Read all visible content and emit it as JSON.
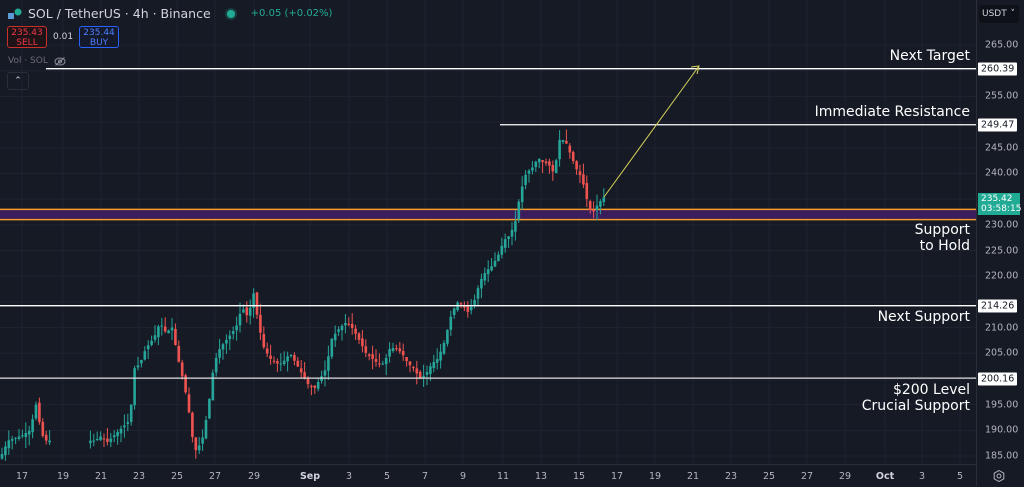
{
  "header": {
    "title": "SOL / TetherUS · 4h · Binance",
    "change": "+0.05 (+0.02%)",
    "sell_price": "235.43",
    "sell_label": "SELL",
    "spread": "0.01",
    "buy_price": "235.44",
    "buy_label": "BUY",
    "volume_label": "Vol · SOL",
    "currency": "USDT"
  },
  "price_axis": {
    "ticks": [
      "265.00",
      "255.00",
      "245.00",
      "240.00",
      "230.00",
      "225.00",
      "220.00",
      "210.00",
      "205.00",
      "195.00",
      "190.00",
      "185.00"
    ],
    "current_price": "235.42",
    "countdown": "03:58:15"
  },
  "time_axis": {
    "ticks": [
      "17",
      "19",
      "21",
      "23",
      "25",
      "27",
      "29",
      "Sep",
      "3",
      "5",
      "7",
      "9",
      "11",
      "13",
      "15",
      "17",
      "19",
      "21",
      "23",
      "25",
      "27",
      "29",
      "Oct",
      "3",
      "5"
    ]
  },
  "annotations": {
    "next_target": {
      "label": "Next Target",
      "price": "260.39"
    },
    "immediate_resistance": {
      "label": "Immediate Resistance",
      "price": "249.47"
    },
    "support_to_hold": {
      "label_line1": "Support",
      "label_line2": "to Hold",
      "zone": [
        231.0,
        233.0
      ]
    },
    "next_support": {
      "label": "Next Support",
      "price": "214.26"
    },
    "level_200": {
      "label_line1": "$200 Level",
      "label_line2": "Crucial Support",
      "price": "200.16"
    }
  },
  "colors": {
    "up": "#26a69a",
    "down": "#ef5350",
    "zone_fill": "#3b1d5e",
    "zone_border": "#f59b2b",
    "arrow": "#d8d25a",
    "background": "#161a25"
  },
  "chart_data": {
    "type": "candlestick",
    "title": "SOL / TetherUS · 4h · Binance",
    "xlabel": "",
    "ylabel": "USDT",
    "ylim": [
      183,
      268
    ],
    "x_ticks": [
      "17",
      "19",
      "21",
      "23",
      "25",
      "27",
      "29",
      "Sep",
      "3",
      "5",
      "7",
      "9",
      "11",
      "13",
      "15",
      "17",
      "19",
      "21",
      "23",
      "25",
      "27",
      "29",
      "Oct",
      "3",
      "5"
    ],
    "y_ticks": [
      185,
      190,
      195,
      200,
      205,
      210,
      215,
      220,
      225,
      230,
      235,
      240,
      245,
      250,
      255,
      260,
      265
    ],
    "horizontal_levels": [
      {
        "name": "Next Target",
        "price": 260.39
      },
      {
        "name": "Immediate Resistance",
        "price": 249.47
      },
      {
        "name": "Next Support",
        "price": 214.26
      },
      {
        "name": "$200 Level Crucial Support",
        "price": 200.16
      }
    ],
    "zones": [
      {
        "name": "Support to Hold",
        "low": 231.0,
        "high": 233.0
      }
    ],
    "projection_arrow": {
      "from": [
        235.4,
        "Sep 15"
      ],
      "to": [
        260.4,
        "Sep 21"
      ]
    },
    "last_price": 235.42,
    "approx_key_points": [
      {
        "date": "Aug 17",
        "close": 189
      },
      {
        "date": "Aug 18",
        "high": 195.5
      },
      {
        "date": "Aug 23",
        "close": 202
      },
      {
        "date": "Aug 24",
        "high": 213
      },
      {
        "date": "Aug 26",
        "low": 186
      },
      {
        "date": "Aug 29",
        "high": 217.5
      },
      {
        "date": "Sep 1",
        "low": 196
      },
      {
        "date": "Sep 3",
        "high": 212
      },
      {
        "date": "Sep 7",
        "low": 200
      },
      {
        "date": "Sep 9",
        "close": 214
      },
      {
        "date": "Sep 11",
        "close": 233
      },
      {
        "date": "Sep 13",
        "close": 243
      },
      {
        "date": "Sep 14",
        "high": 249.5
      },
      {
        "date": "Sep 15",
        "low": 230.5
      },
      {
        "date": "Sep 16",
        "close": 235.42
      }
    ]
  }
}
